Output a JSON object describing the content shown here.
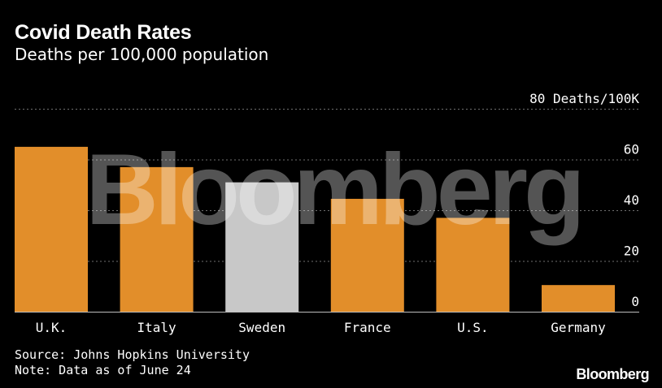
{
  "chart_data": {
    "type": "bar",
    "title": "Covid Death Rates",
    "subtitle": "Deaths per 100,000 population",
    "categories": [
      "U.K.",
      "Italy",
      "Sweden",
      "France",
      "U.S.",
      "Germany"
    ],
    "values": [
      65,
      57,
      51,
      44.5,
      37,
      10.5
    ],
    "highlighted_category": "Sweden",
    "ylim": [
      0,
      80
    ],
    "yticks": [
      {
        "value": 0,
        "label": "0"
      },
      {
        "value": 20,
        "label": "20"
      },
      {
        "value": 40,
        "label": "40"
      },
      {
        "value": 60,
        "label": "60"
      },
      {
        "value": 80,
        "label": "80 Deaths/100K"
      }
    ],
    "grid": true,
    "colors": {
      "bar": "#e28e2a",
      "highlight": "#c8c8c8",
      "background": "#000000",
      "grid": "#707070",
      "text": "#ffffff"
    }
  },
  "watermark": "Bloomberg",
  "footer": {
    "source": "Source: Johns Hopkins University",
    "note": "Note: Data as of June 24"
  },
  "brand": "Bloomberg"
}
